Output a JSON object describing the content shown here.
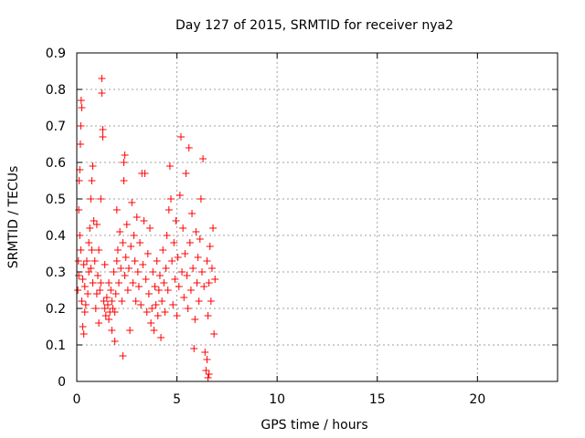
{
  "chart_data": {
    "type": "scatter",
    "title": "Day 127 of 2015, SRMTID for receiver nya2",
    "xlabel": "GPS time / hours",
    "ylabel": "SRMTID / TECUs",
    "xlim": [
      0,
      24
    ],
    "ylim": [
      0,
      0.9
    ],
    "xticks": [
      "0",
      "5",
      "10",
      "15",
      "20"
    ],
    "yticks": [
      "0",
      "0.1",
      "0.2",
      "0.3",
      "0.4",
      "0.5",
      "0.6",
      "0.7",
      "0.8",
      "0.9"
    ],
    "grid": true,
    "marker": "+",
    "color": "#ff0000",
    "series": [
      {
        "points": [
          [
            0.05,
            0.25
          ],
          [
            0.08,
            0.33
          ],
          [
            0.1,
            0.47
          ],
          [
            0.12,
            0.55
          ],
          [
            0.15,
            0.58
          ],
          [
            0.18,
            0.65
          ],
          [
            0.2,
            0.7
          ],
          [
            0.22,
            0.77
          ],
          [
            0.25,
            0.75
          ],
          [
            0.1,
            0.29
          ],
          [
            0.15,
            0.4
          ],
          [
            0.2,
            0.36
          ],
          [
            0.25,
            0.22
          ],
          [
            0.3,
            0.15
          ],
          [
            0.3,
            0.28
          ],
          [
            0.35,
            0.13
          ],
          [
            0.35,
            0.32
          ],
          [
            0.4,
            0.19
          ],
          [
            0.4,
            0.26
          ],
          [
            0.45,
            0.21
          ],
          [
            0.5,
            0.33
          ],
          [
            0.55,
            0.24
          ],
          [
            0.6,
            0.3
          ],
          [
            0.6,
            0.38
          ],
          [
            0.65,
            0.42
          ],
          [
            0.7,
            0.5
          ],
          [
            0.7,
            0.31
          ],
          [
            0.75,
            0.36
          ],
          [
            0.75,
            0.55
          ],
          [
            0.8,
            0.27
          ],
          [
            0.8,
            0.59
          ],
          [
            0.85,
            0.44
          ],
          [
            0.9,
            0.33
          ],
          [
            0.95,
            0.2
          ],
          [
            1.0,
            0.24
          ],
          [
            1.0,
            0.43
          ],
          [
            1.05,
            0.29
          ],
          [
            1.1,
            0.16
          ],
          [
            1.1,
            0.36
          ],
          [
            1.15,
            0.25
          ],
          [
            1.2,
            0.27
          ],
          [
            1.2,
            0.5
          ],
          [
            1.25,
            0.83
          ],
          [
            1.25,
            0.79
          ],
          [
            1.3,
            0.69
          ],
          [
            1.3,
            0.67
          ],
          [
            1.35,
            0.22
          ],
          [
            1.4,
            0.2
          ],
          [
            1.4,
            0.32
          ],
          [
            1.45,
            0.18
          ],
          [
            1.5,
            0.23
          ],
          [
            1.55,
            0.21
          ],
          [
            1.6,
            0.17
          ],
          [
            1.6,
            0.27
          ],
          [
            1.65,
            0.19
          ],
          [
            1.7,
            0.25
          ],
          [
            1.75,
            0.14
          ],
          [
            1.75,
            0.22
          ],
          [
            1.8,
            0.2
          ],
          [
            1.85,
            0.3
          ],
          [
            1.9,
            0.11
          ],
          [
            1.9,
            0.19
          ],
          [
            1.95,
            0.24
          ],
          [
            2.0,
            0.33
          ],
          [
            2.0,
            0.47
          ],
          [
            2.05,
            0.36
          ],
          [
            2.1,
            0.27
          ],
          [
            2.15,
            0.41
          ],
          [
            2.2,
            0.31
          ],
          [
            2.25,
            0.22
          ],
          [
            2.3,
            0.07
          ],
          [
            2.3,
            0.38
          ],
          [
            2.35,
            0.55
          ],
          [
            2.35,
            0.6
          ],
          [
            2.4,
            0.62
          ],
          [
            2.4,
            0.29
          ],
          [
            2.45,
            0.34
          ],
          [
            2.5,
            0.43
          ],
          [
            2.55,
            0.25
          ],
          [
            2.6,
            0.31
          ],
          [
            2.65,
            0.14
          ],
          [
            2.7,
            0.37
          ],
          [
            2.75,
            0.49
          ],
          [
            2.8,
            0.27
          ],
          [
            2.85,
            0.4
          ],
          [
            2.9,
            0.33
          ],
          [
            2.95,
            0.22
          ],
          [
            3.0,
            0.45
          ],
          [
            3.05,
            0.3
          ],
          [
            3.1,
            0.26
          ],
          [
            3.15,
            0.38
          ],
          [
            3.2,
            0.21
          ],
          [
            3.25,
            0.57
          ],
          [
            3.3,
            0.32
          ],
          [
            3.35,
            0.44
          ],
          [
            3.4,
            0.57
          ],
          [
            3.45,
            0.28
          ],
          [
            3.5,
            0.19
          ],
          [
            3.55,
            0.35
          ],
          [
            3.6,
            0.24
          ],
          [
            3.65,
            0.42
          ],
          [
            3.7,
            0.16
          ],
          [
            3.75,
            0.2
          ],
          [
            3.8,
            0.3
          ],
          [
            3.85,
            0.14
          ],
          [
            3.9,
            0.26
          ],
          [
            3.95,
            0.21
          ],
          [
            4.0,
            0.33
          ],
          [
            4.05,
            0.18
          ],
          [
            4.1,
            0.25
          ],
          [
            4.15,
            0.29
          ],
          [
            4.2,
            0.12
          ],
          [
            4.25,
            0.22
          ],
          [
            4.3,
            0.36
          ],
          [
            4.35,
            0.27
          ],
          [
            4.4,
            0.19
          ],
          [
            4.45,
            0.31
          ],
          [
            4.5,
            0.4
          ],
          [
            4.55,
            0.25
          ],
          [
            4.6,
            0.47
          ],
          [
            4.65,
            0.59
          ],
          [
            4.7,
            0.5
          ],
          [
            4.75,
            0.33
          ],
          [
            4.8,
            0.21
          ],
          [
            4.85,
            0.38
          ],
          [
            4.9,
            0.28
          ],
          [
            4.95,
            0.44
          ],
          [
            5.0,
            0.18
          ],
          [
            5.05,
            0.34
          ],
          [
            5.1,
            0.26
          ],
          [
            5.15,
            0.51
          ],
          [
            5.2,
            0.67
          ],
          [
            5.25,
            0.3
          ],
          [
            5.3,
            0.42
          ],
          [
            5.35,
            0.23
          ],
          [
            5.4,
            0.35
          ],
          [
            5.45,
            0.57
          ],
          [
            5.5,
            0.29
          ],
          [
            5.55,
            0.2
          ],
          [
            5.6,
            0.64
          ],
          [
            5.65,
            0.38
          ],
          [
            5.7,
            0.25
          ],
          [
            5.75,
            0.46
          ],
          [
            5.8,
            0.31
          ],
          [
            5.85,
            0.09
          ],
          [
            5.9,
            0.17
          ],
          [
            5.95,
            0.41
          ],
          [
            6.0,
            0.27
          ],
          [
            6.05,
            0.34
          ],
          [
            6.1,
            0.22
          ],
          [
            6.15,
            0.39
          ],
          [
            6.2,
            0.5
          ],
          [
            6.25,
            0.3
          ],
          [
            6.3,
            0.61
          ],
          [
            6.35,
            0.26
          ],
          [
            6.4,
            0.08
          ],
          [
            6.45,
            0.03
          ],
          [
            6.5,
            0.06
          ],
          [
            6.55,
            0.01
          ],
          [
            6.6,
            0.02
          ],
          [
            6.5,
            0.33
          ],
          [
            6.55,
            0.18
          ],
          [
            6.6,
            0.27
          ],
          [
            6.65,
            0.37
          ],
          [
            6.7,
            0.22
          ],
          [
            6.75,
            0.31
          ],
          [
            6.8,
            0.42
          ],
          [
            6.85,
            0.13
          ],
          [
            6.9,
            0.28
          ]
        ]
      }
    ]
  }
}
